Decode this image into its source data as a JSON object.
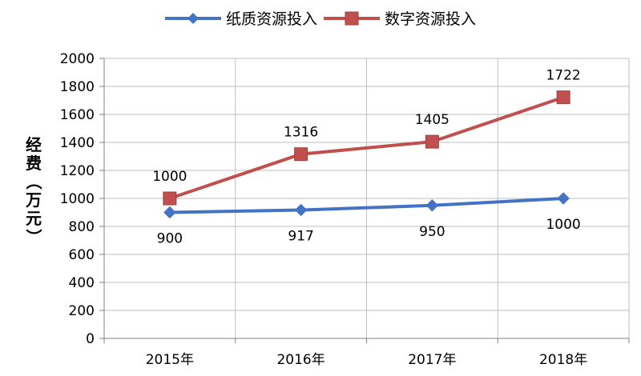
{
  "chart_data": {
    "type": "line",
    "title": "",
    "xlabel": "",
    "ylabel": "经费（万元）",
    "ylabel_chars": [
      "经",
      "费",
      "（",
      "万",
      "元",
      "）"
    ],
    "categories": [
      "2015年",
      "2016年",
      "2017年",
      "2018年"
    ],
    "ylim": [
      0,
      2000
    ],
    "y_ticks": [
      0,
      200,
      400,
      600,
      800,
      1000,
      1200,
      1400,
      1600,
      1800,
      2000
    ],
    "grid": true,
    "legend_position": "top-center",
    "series": [
      {
        "name": "纸质资源投入",
        "values": [
          900,
          917,
          950,
          1000
        ],
        "labels": [
          "900",
          "917",
          "950",
          "1000"
        ],
        "color": "#4472c4",
        "marker": "diamond"
      },
      {
        "name": "数字资源投入",
        "values": [
          1000,
          1316,
          1405,
          1722
        ],
        "labels": [
          "1000",
          "1316",
          "1405",
          "1722"
        ],
        "color": "#c0504d",
        "marker": "square"
      }
    ]
  }
}
